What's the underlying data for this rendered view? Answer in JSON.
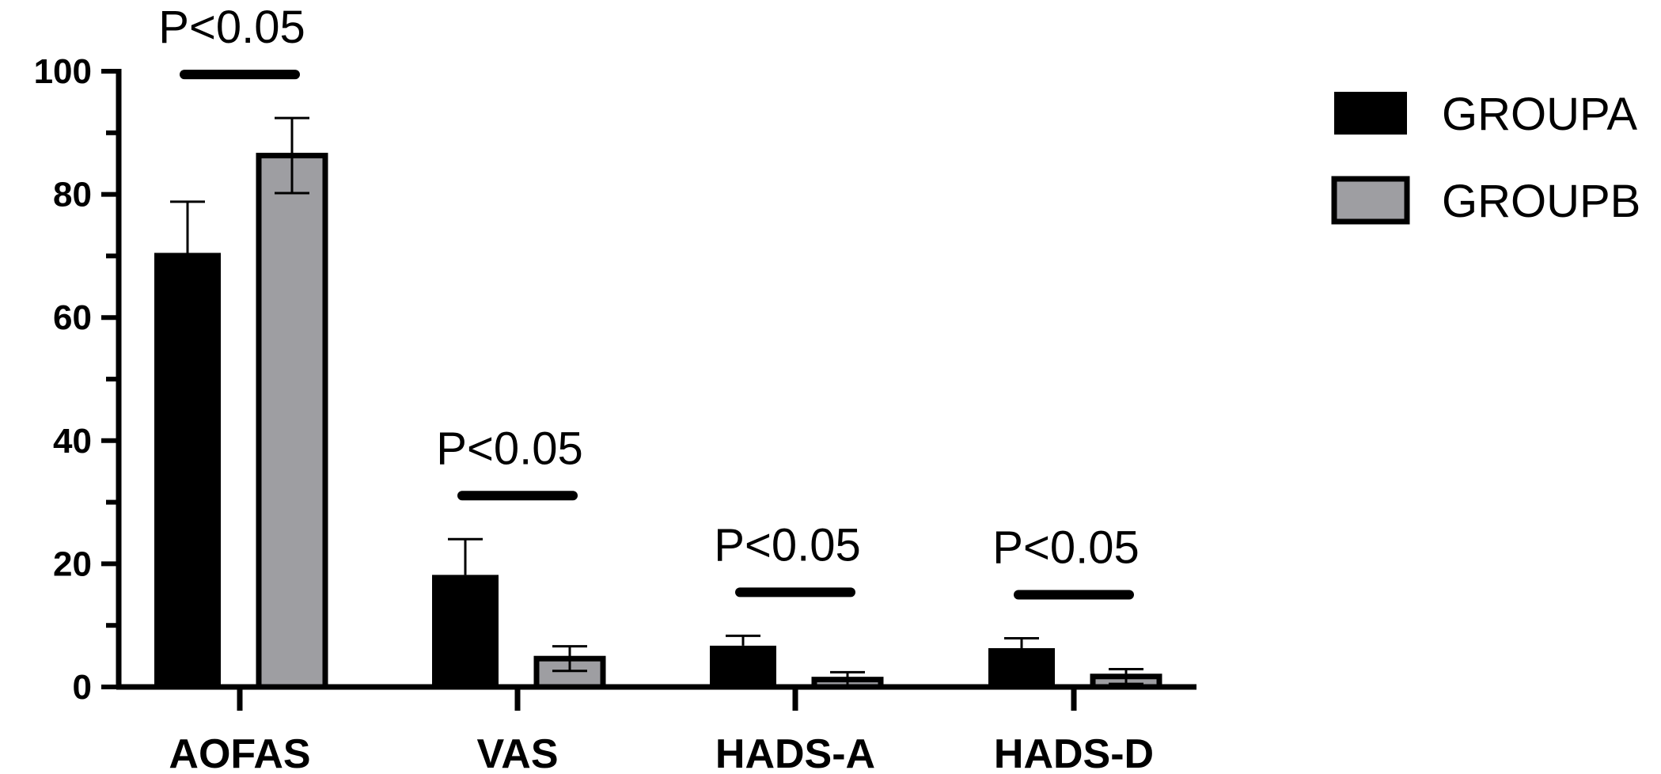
{
  "chart_data": {
    "type": "bar",
    "categories": [
      "AOFAS",
      "VAS",
      "HADS-A",
      "HADS-D"
    ],
    "series": [
      {
        "name": "GROUPA",
        "values": [
          70.5,
          18.2,
          6.7,
          6.3
        ],
        "errors": [
          8.3,
          5.8,
          1.6,
          1.6
        ],
        "color": "#000000"
      },
      {
        "name": "GROUPB",
        "values": [
          86.3,
          4.6,
          1.2,
          1.7
        ],
        "errors": [
          6.1,
          2.0,
          1.2,
          1.2
        ],
        "color": "#9e9ea2"
      }
    ],
    "annotations": [
      "P<0.05",
      "P<0.05",
      "P<0.05",
      "P<0.05"
    ],
    "ylim": [
      0,
      100
    ],
    "y_ticks": [
      "0",
      "20",
      "40",
      "60",
      "80",
      "100"
    ],
    "title": "",
    "xlabel": "",
    "ylabel": "",
    "grid": false,
    "legend_position": "top-right"
  }
}
